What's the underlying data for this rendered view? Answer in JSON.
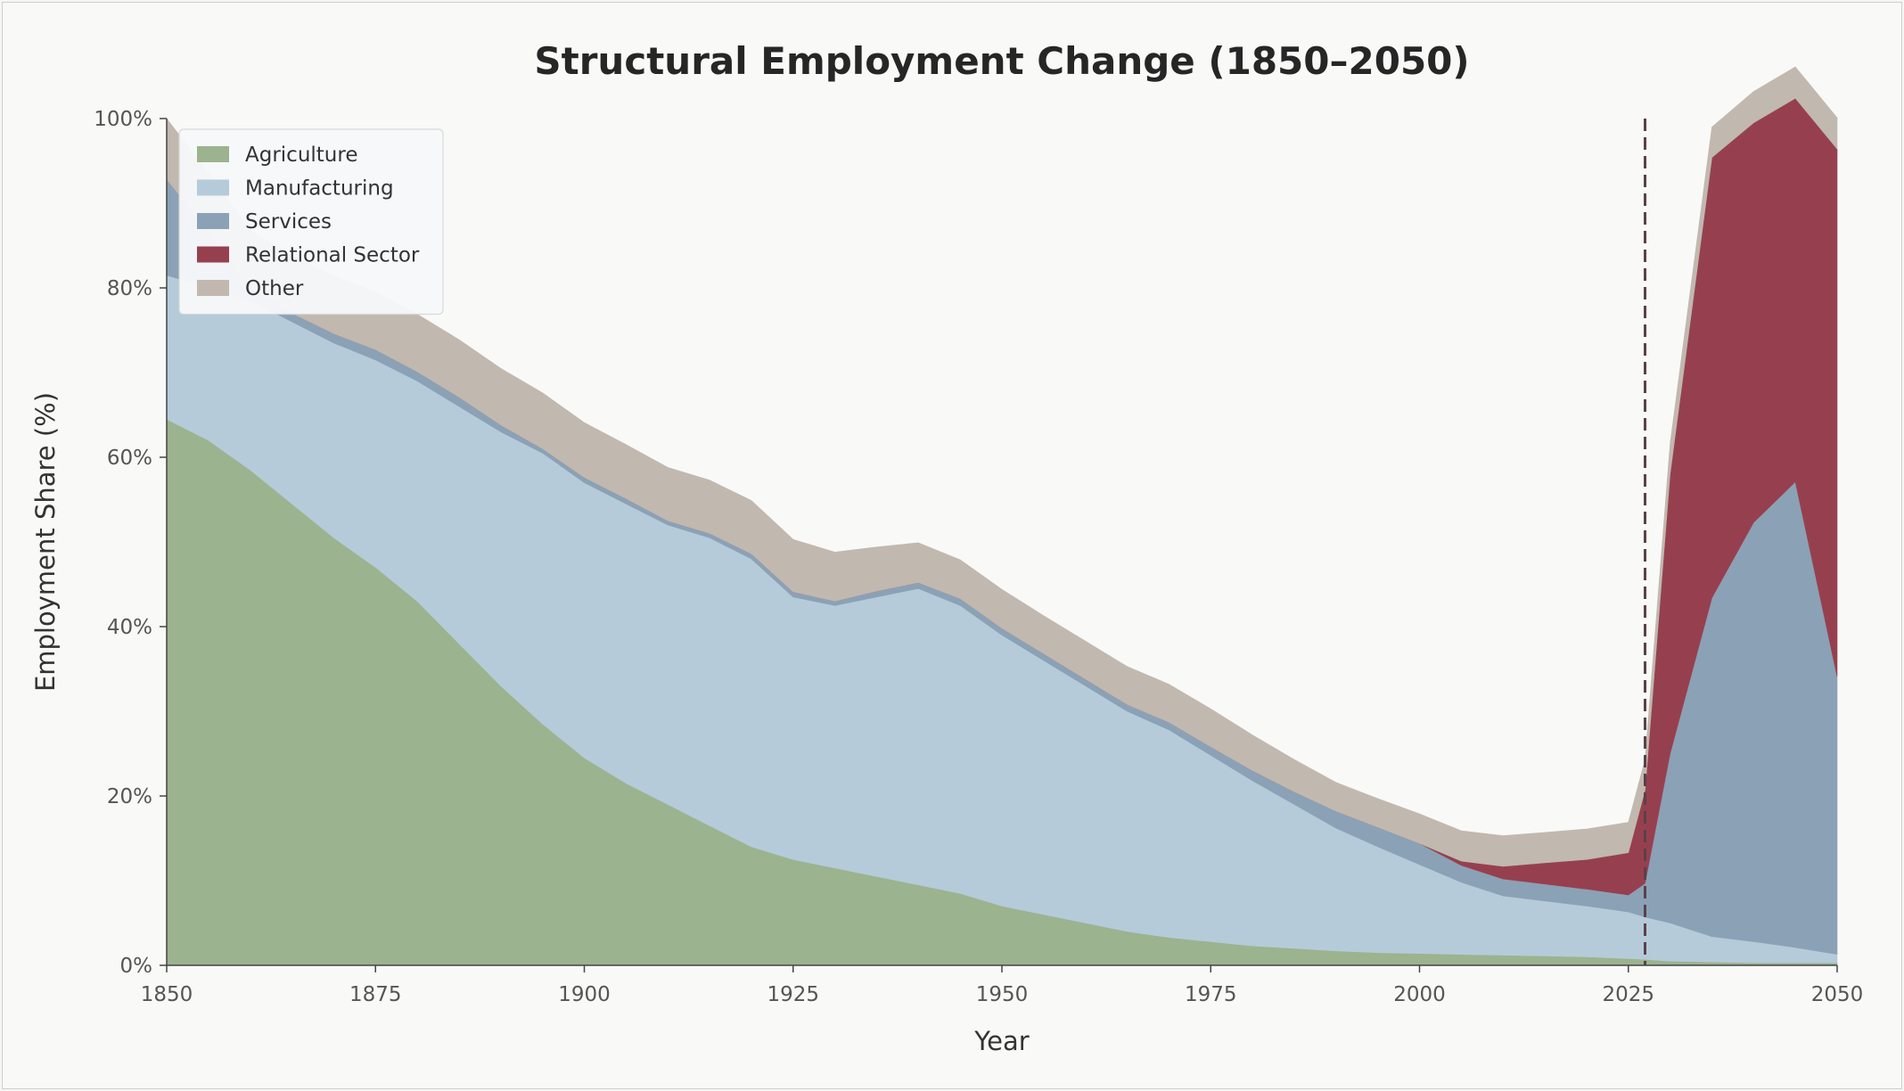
{
  "chart_data": {
    "type": "area",
    "stacked": true,
    "title": "Structural Employment Change (1850–2050)",
    "xlabel": "Year",
    "ylabel": "Employment Share (%)",
    "xlim": [
      1850,
      2050
    ],
    "ylim": [
      0,
      100
    ],
    "x_ticks": [
      1850,
      1875,
      1900,
      1925,
      1950,
      1975,
      2000,
      2025,
      2050
    ],
    "y_ticks": [
      0,
      20,
      40,
      60,
      80,
      100
    ],
    "y_tick_suffix": "%",
    "grid": false,
    "legend_position": "top-left",
    "vertical_marker": {
      "x": 2027,
      "style": "dashed",
      "color": "#5a4148"
    },
    "x": [
      1850,
      1855,
      1860,
      1865,
      1870,
      1875,
      1880,
      1885,
      1890,
      1895,
      1900,
      1905,
      1910,
      1915,
      1920,
      1925,
      1930,
      1935,
      1940,
      1945,
      1950,
      1955,
      1960,
      1965,
      1970,
      1975,
      1980,
      1985,
      1990,
      1995,
      2000,
      2005,
      2010,
      2015,
      2020,
      2025,
      2027,
      2030,
      2035,
      2040,
      2045,
      2050
    ],
    "series": [
      {
        "name": "Agriculture",
        "color": "#9cb38f",
        "values": [
          64.5,
          62,
          58.5,
          54.5,
          50.5,
          47,
          43,
          38,
          33,
          28.5,
          24.5,
          21.5,
          19,
          16.5,
          14,
          12.5,
          11.5,
          10.5,
          9.5,
          8.5,
          7,
          6,
          5,
          4,
          3.3,
          2.8,
          2.3,
          2,
          1.7,
          1.5,
          1.4,
          1.3,
          1.2,
          1.1,
          1,
          0.8,
          0.7,
          0.5,
          0.4,
          0.3,
          0.3,
          0.3
        ]
      },
      {
        "name": "Manufacturing",
        "color": "#b5cbda",
        "values": [
          17,
          18,
          20,
          21.5,
          23,
          24.5,
          26,
          28,
          30,
          32,
          32.5,
          33,
          33,
          34,
          34,
          31,
          31,
          33,
          35,
          34,
          32,
          30,
          28,
          26,
          24.5,
          22,
          19.5,
          17,
          14.5,
          12.5,
          10.5,
          8.5,
          7,
          6.5,
          6,
          5.5,
          5,
          4.5,
          3,
          2.5,
          1.8,
          1
        ]
      },
      {
        "name": "Services",
        "color": "#8ba1b6",
        "values": [
          11.3,
          6.7,
          1.5,
          1,
          1.1,
          1.2,
          1.1,
          1.1,
          0.8,
          0.5,
          0.6,
          0.6,
          0.5,
          0.5,
          0.6,
          0.6,
          0.5,
          0.7,
          0.7,
          0.8,
          0.8,
          0.8,
          0.8,
          0.8,
          0.9,
          1,
          1.2,
          1.5,
          2,
          2.3,
          2.5,
          2,
          2,
          2,
          2,
          2,
          4,
          20,
          40,
          49.5,
          55,
          32.8
        ]
      },
      {
        "name": "Relational Sector",
        "color": "#96404f",
        "values": [
          0,
          0,
          0,
          0,
          0,
          0,
          0,
          0,
          0,
          0,
          0,
          0,
          0,
          0,
          0,
          0,
          0,
          0,
          0,
          0,
          0,
          0,
          0,
          0,
          0,
          0,
          0,
          0,
          0,
          0,
          0,
          0.5,
          1.5,
          2.5,
          3.5,
          5,
          11,
          33,
          52,
          47.2,
          45.3,
          62.3
        ]
      },
      {
        "name": "Other",
        "color": "#c1b8af",
        "values": [
          7.2,
          6.9,
          6.8,
          6.8,
          6.8,
          6.8,
          6.8,
          6.8,
          6.7,
          6.6,
          6.5,
          6.4,
          6.3,
          6.3,
          6.3,
          6.2,
          5.8,
          5.2,
          4.7,
          4.6,
          4.6,
          4.5,
          4.5,
          4.5,
          4.5,
          4.5,
          4.2,
          3.8,
          3.4,
          3.4,
          3.5,
          3.6,
          3.6,
          3.6,
          3.6,
          3.6,
          3.6,
          3.6,
          3.6,
          3.7,
          3.7,
          3.7
        ]
      }
    ]
  }
}
